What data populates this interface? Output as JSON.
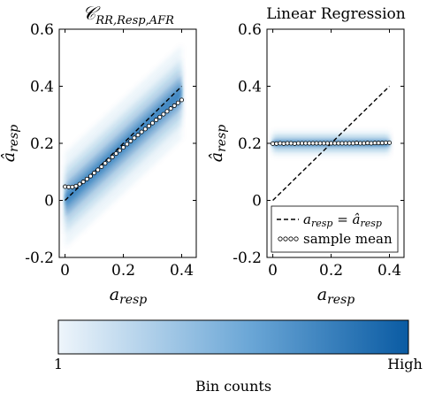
{
  "chart_data": [
    {
      "type": "heatmap",
      "title": "𝒞RR,Resp,AFR",
      "xlabel": "a_resp",
      "ylabel": "â_resp",
      "xlim": [
        -0.02,
        0.45
      ],
      "ylim": [
        -0.2,
        0.6
      ],
      "xticks": [
        "0",
        "0.2",
        "0.4"
      ],
      "yticks": [
        "-0.2",
        "0",
        "0.2",
        "0.4",
        "0.6"
      ],
      "grid": false,
      "density": {
        "center_intercept": 0.0,
        "center_slope": 0.95,
        "spread": 0.06
      },
      "series": [
        {
          "name": "a_resp = â_resp",
          "style": "dashed",
          "x": [
            0,
            0.4
          ],
          "y": [
            0,
            0.4
          ]
        },
        {
          "name": "sample mean",
          "style": "circles",
          "x": [
            0.0,
            0.0125,
            0.025,
            0.0375,
            0.05,
            0.0625,
            0.075,
            0.0875,
            0.1,
            0.1125,
            0.125,
            0.1375,
            0.15,
            0.1625,
            0.175,
            0.1875,
            0.2,
            0.2125,
            0.225,
            0.2375,
            0.25,
            0.2625,
            0.275,
            0.2875,
            0.3,
            0.3125,
            0.325,
            0.3375,
            0.35,
            0.3625,
            0.375,
            0.3875,
            0.4
          ],
          "y": [
            0.048,
            0.047,
            0.047,
            0.05,
            0.057,
            0.065,
            0.075,
            0.085,
            0.096,
            0.107,
            0.118,
            0.13,
            0.141,
            0.152,
            0.164,
            0.175,
            0.186,
            0.197,
            0.208,
            0.219,
            0.229,
            0.24,
            0.25,
            0.261,
            0.271,
            0.282,
            0.292,
            0.302,
            0.312,
            0.322,
            0.332,
            0.342,
            0.352
          ]
        }
      ]
    },
    {
      "type": "heatmap",
      "title": "Linear Regression",
      "xlabel": "a_resp",
      "ylabel": "â_resp",
      "xlim": [
        -0.02,
        0.45
      ],
      "ylim": [
        -0.2,
        0.6
      ],
      "xticks": [
        "0",
        "0.2",
        "0.4"
      ],
      "yticks": [
        "-0.2",
        "0",
        "0.2",
        "0.4",
        "0.6"
      ],
      "grid": false,
      "legend": "bottom-right",
      "density": {
        "center_intercept": 0.2,
        "center_slope": 0.0,
        "spread": 0.015
      },
      "series": [
        {
          "name": "a_resp = â_resp",
          "style": "dashed",
          "x": [
            0,
            0.4
          ],
          "y": [
            0,
            0.4
          ]
        },
        {
          "name": "sample mean",
          "style": "circles",
          "x": [
            0.0,
            0.0125,
            0.025,
            0.0375,
            0.05,
            0.0625,
            0.075,
            0.0875,
            0.1,
            0.1125,
            0.125,
            0.1375,
            0.15,
            0.1625,
            0.175,
            0.1875,
            0.2,
            0.2125,
            0.225,
            0.2375,
            0.25,
            0.2625,
            0.275,
            0.2875,
            0.3,
            0.3125,
            0.325,
            0.3375,
            0.35,
            0.3625,
            0.375,
            0.3875,
            0.4
          ],
          "y": [
            0.199,
            0.199,
            0.2,
            0.199,
            0.2,
            0.2,
            0.199,
            0.2,
            0.2,
            0.2,
            0.2,
            0.2,
            0.2,
            0.2,
            0.2,
            0.2,
            0.2,
            0.2,
            0.2,
            0.2,
            0.2,
            0.2,
            0.2,
            0.201,
            0.2,
            0.2,
            0.201,
            0.2,
            0.201,
            0.201,
            0.201,
            0.202,
            0.202
          ]
        }
      ]
    }
  ],
  "legend": {
    "entries": [
      "a_resp = â_resp",
      "sample mean"
    ]
  },
  "colorbar": {
    "label": "Bin counts",
    "min_label": "1",
    "max_label": "High",
    "color_low": "#eef5fb",
    "color_high": "#0a5ba3"
  },
  "colors": {
    "density": "#1c6fb5",
    "marker_fill": "#ffffff",
    "line": "#000000"
  }
}
